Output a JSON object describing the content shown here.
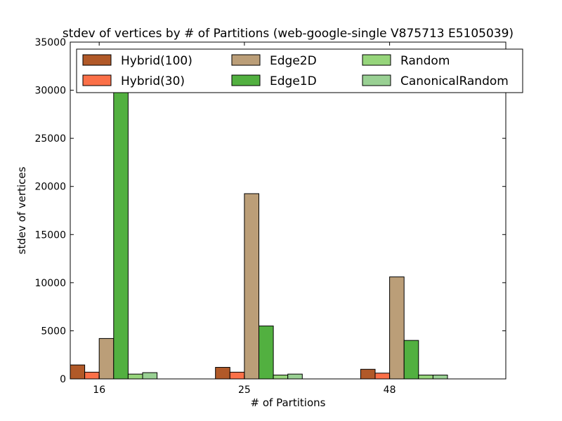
{
  "chart_data": {
    "type": "bar",
    "title": "stdev of vertices by # of Partitions (web-google-single V875713 E5105039)",
    "xlabel": "# of Partitions",
    "ylabel": "stdev of vertices",
    "categories": [
      "16",
      "25",
      "48"
    ],
    "ylim": [
      0,
      35000
    ],
    "yticks": [
      0,
      5000,
      10000,
      15000,
      20000,
      25000,
      30000,
      35000
    ],
    "legend_position": "top",
    "series": [
      {
        "name": "Hybrid(100)",
        "color": "#b15928",
        "values": [
          1450,
          1200,
          1000
        ]
      },
      {
        "name": "Hybrid(30)",
        "color": "#fb7048",
        "values": [
          700,
          700,
          600
        ]
      },
      {
        "name": "Edge2D",
        "color": "#bb9e78",
        "values": [
          4200,
          19250,
          10600
        ]
      },
      {
        "name": "Edge1D",
        "color": "#52b040",
        "values": [
          32000,
          5500,
          4000
        ]
      },
      {
        "name": "Random",
        "color": "#96d57b",
        "values": [
          500,
          400,
          400
        ]
      },
      {
        "name": "CanonicalRandom",
        "color": "#99d093",
        "values": [
          650,
          500,
          400
        ]
      }
    ]
  }
}
